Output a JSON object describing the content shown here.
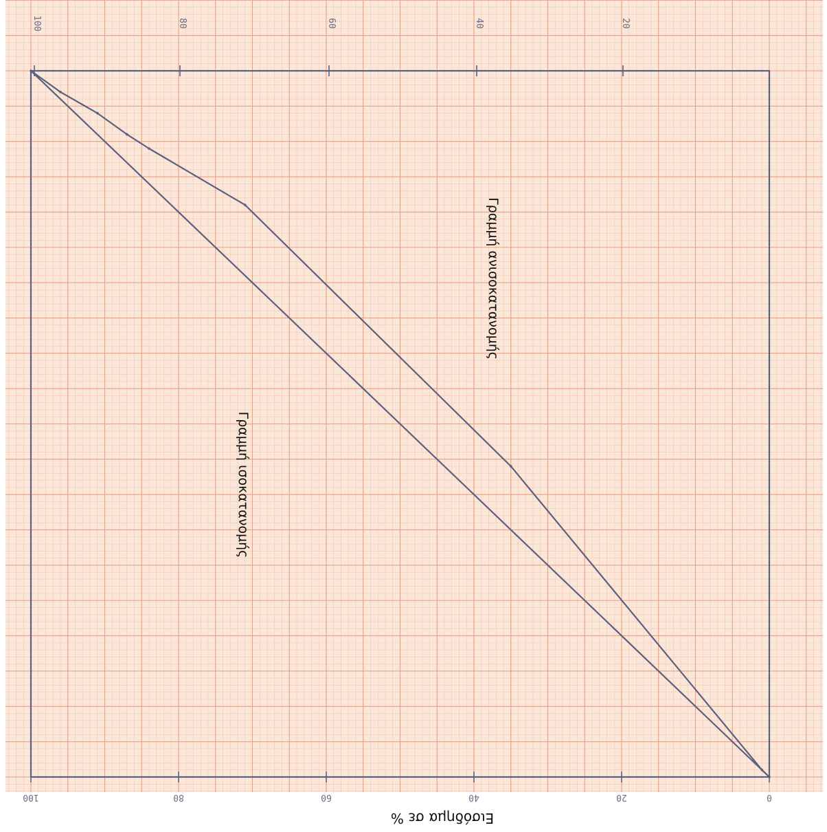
{
  "chart_data": {
    "type": "line",
    "xlim": [
      0,
      100
    ],
    "ylim": [
      0,
      100
    ],
    "x_ticks": [
      "0",
      "20",
      "40",
      "60",
      "80",
      "100"
    ],
    "y_ticks": [
      "20",
      "40",
      "60",
      "80",
      "100"
    ],
    "grid": true,
    "colors": {
      "paper": "#fbe7d9",
      "grid_minor": "#f3c7ad",
      "grid_major": "#ec9f7b",
      "ink": "#5a607e",
      "text": "#111111"
    },
    "series": [
      {
        "values_xy": [
          [
            0,
            0
          ],
          [
            100,
            100
          ]
        ]
      },
      {
        "values_xy": [
          [
            0,
            0
          ],
          [
            1,
            1
          ],
          [
            44,
            35
          ],
          [
            81,
            71
          ],
          [
            89,
            84
          ],
          [
            91,
            87
          ],
          [
            94,
            91
          ],
          [
            97,
            96
          ],
          [
            100,
            100
          ]
        ]
      }
    ],
    "annotations": [
      {
        "id": "equality",
        "text": "Γραμμή ισοκατανομής"
      },
      {
        "id": "inequality",
        "text": "Γραμμή ανισοκατανομής"
      }
    ],
    "caption": "Εισόδημα σε %"
  }
}
